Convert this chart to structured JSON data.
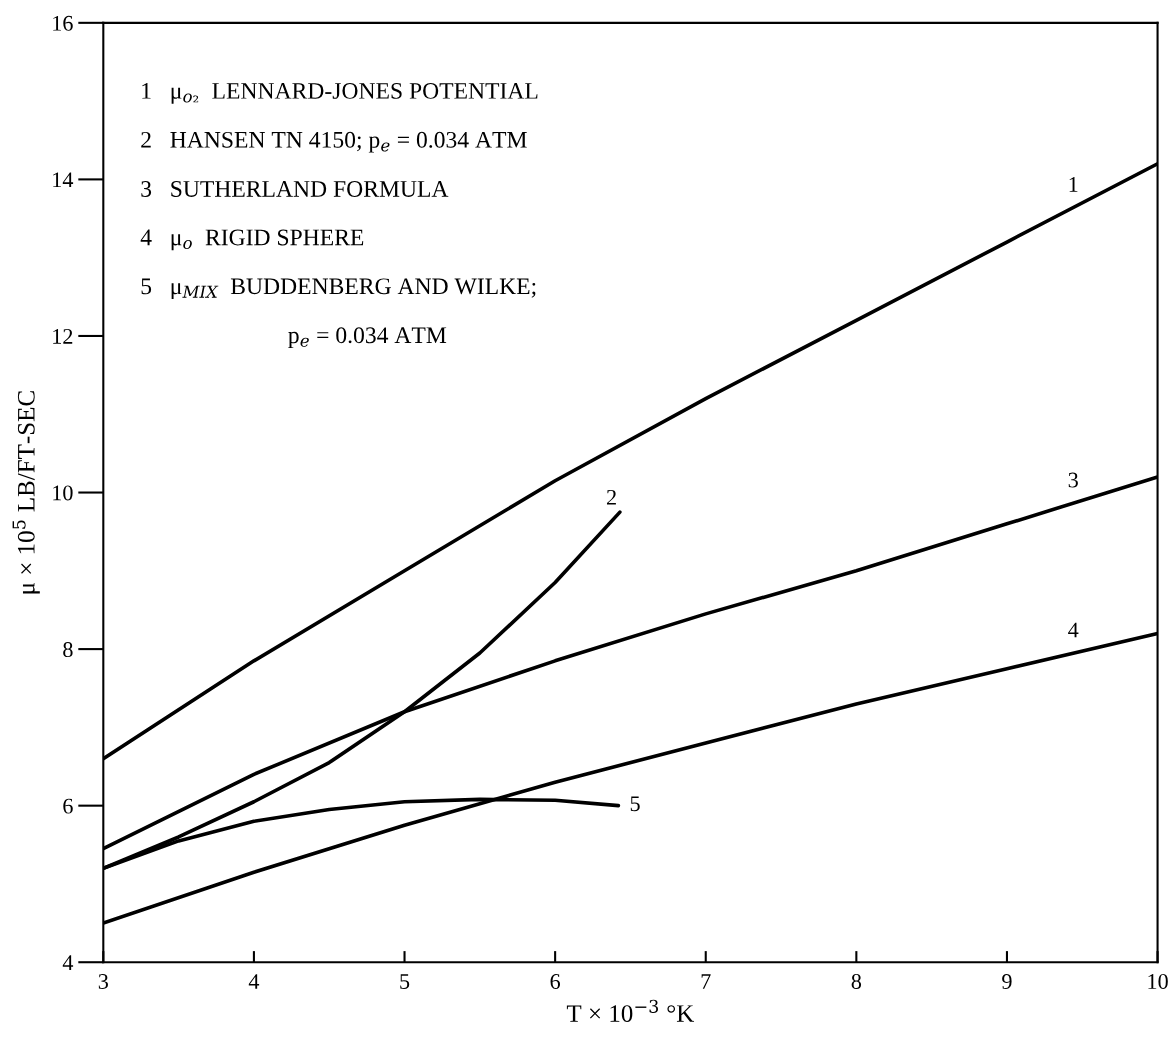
{
  "chart_data": {
    "type": "line",
    "xlabel": "T × 10$^{−3}$ °K",
    "ylabel": "μ × 10$^{5}$ LB/FT-SEC",
    "xlim": [
      3,
      10
    ],
    "ylim": [
      4,
      16
    ],
    "xticks": [
      3,
      4,
      5,
      6,
      7,
      8,
      9,
      10
    ],
    "yticks": [
      4,
      6,
      8,
      10,
      12,
      14,
      16
    ],
    "grid": false,
    "legend": false,
    "marker": "none",
    "line_style": "solid",
    "series": [
      {
        "name": "1",
        "color": "#000000",
        "x": [
          3,
          4,
          5,
          6,
          7,
          8,
          9,
          10
        ],
        "values": [
          6.6,
          7.85,
          9.0,
          10.15,
          11.2,
          12.2,
          13.2,
          14.2
        ]
      },
      {
        "name": "2",
        "color": "#000000",
        "x": [
          3,
          3.5,
          4,
          4.5,
          5,
          5.5,
          6,
          6.43
        ],
        "values": [
          5.2,
          5.6,
          6.05,
          6.55,
          7.2,
          7.95,
          8.85,
          9.75
        ]
      },
      {
        "name": "3",
        "color": "#000000",
        "x": [
          3,
          4,
          5,
          6,
          7,
          8,
          9,
          10
        ],
        "values": [
          5.45,
          6.4,
          7.2,
          7.85,
          8.45,
          9.0,
          9.6,
          10.2
        ]
      },
      {
        "name": "4",
        "color": "#000000",
        "x": [
          3,
          4,
          5,
          6,
          7,
          8,
          9,
          10
        ],
        "values": [
          4.5,
          5.15,
          5.75,
          6.3,
          6.8,
          7.3,
          7.75,
          8.2
        ]
      },
      {
        "name": "5",
        "color": "#000000",
        "x": [
          3,
          3.5,
          4,
          4.5,
          5,
          5.5,
          6,
          6.42
        ],
        "values": [
          5.2,
          5.55,
          5.8,
          5.95,
          6.05,
          6.08,
          6.07,
          6.0
        ]
      }
    ],
    "annotations": [
      "1   μ$_{o₂}$  LENNARD-JONES POTENTIAL",
      "2   HANSEN TN 4150; p$_{e}$ = 0.034 ATM",
      "3   SUTHERLAND FORMULA",
      "4   μ$_{o}$  RIGID SPHERE",
      "5   μ$_{MIX}$  BUDDENBERG AND WILKE;",
      "p$_{e}$ = 0.034 ATM"
    ]
  }
}
